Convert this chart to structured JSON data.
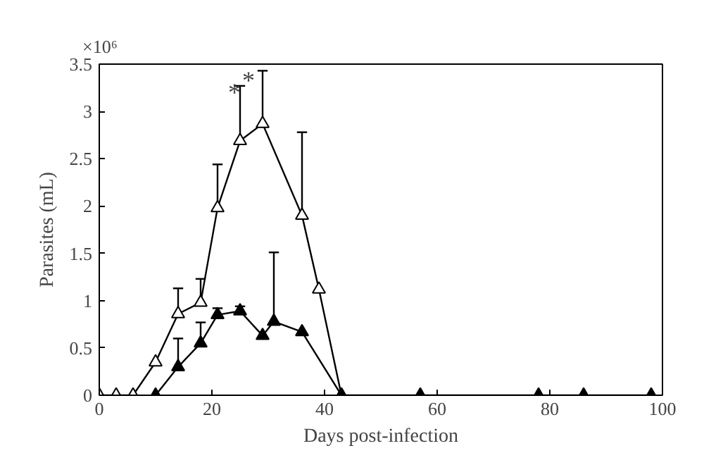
{
  "chart_data": {
    "type": "line",
    "xlabel": "Days post-infection",
    "ylabel": "Parasites (mL)",
    "xlim": [
      0,
      100
    ],
    "xticks": [
      0,
      20,
      40,
      60,
      80,
      100
    ],
    "ylim": [
      0,
      3.5
    ],
    "yticks": [
      0,
      0.5,
      1,
      1.5,
      2,
      2.5,
      3,
      3.5
    ],
    "grid": false,
    "marker": "triangle",
    "line_style": "solid",
    "series": [
      {
        "color": "#000000",
        "x": [
          0,
          3,
          6,
          10,
          14,
          18,
          21,
          25,
          29,
          36,
          39,
          43
        ],
        "values": [
          0,
          0,
          0,
          0.35,
          0.86,
          0.98,
          1.98,
          2.69,
          2.87,
          1.9,
          1.12,
          0
        ],
        "errors": [
          null,
          null,
          null,
          null,
          [
            0.86,
            1.13
          ],
          [
            0.98,
            1.23
          ],
          [
            1.98,
            2.44
          ],
          [
            2.69,
            3.27
          ],
          [
            2.87,
            3.43
          ],
          [
            1.9,
            2.78
          ],
          null,
          null
        ]
      },
      {
        "color": "#000000",
        "x": [
          10,
          14,
          18,
          21,
          25,
          29,
          31,
          36,
          43,
          57,
          78,
          86,
          98
        ],
        "values": [
          0,
          0.3,
          0.55,
          0.85,
          0.89,
          0.63,
          0.78,
          0.67,
          0,
          0,
          0,
          0,
          0
        ],
        "errors": [
          null,
          [
            0.3,
            0.6
          ],
          [
            0.55,
            0.77
          ],
          [
            0.85,
            0.92
          ],
          [
            0.89,
            0.94
          ],
          null,
          [
            0.78,
            1.51
          ],
          null,
          null,
          null,
          null,
          null,
          null
        ]
      }
    ],
    "annotations": [
      "×10⁶",
      {
        "text": "*",
        "x": 24,
        "y": 3.2
      },
      {
        "text": "*",
        "x": 26.5,
        "y": 3.33
      }
    ]
  }
}
